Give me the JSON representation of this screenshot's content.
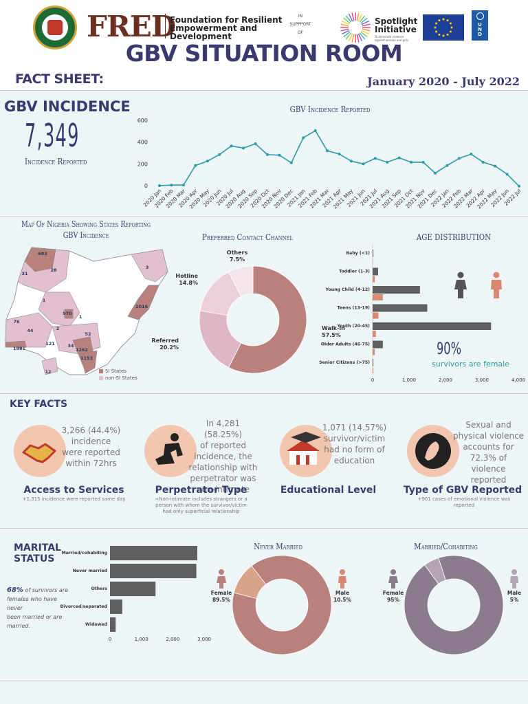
{
  "header": {
    "seal_text": "FEDERAL MINISTRY OF WOMEN AFFAIRS",
    "fred_logo": "FRED",
    "fred_full": [
      "Foundation for Resilient",
      "Empowerment and",
      "Development"
    ],
    "in_support": [
      "IN",
      "SUPPPORT",
      "OF"
    ],
    "spotlight_name": [
      "Spotlight",
      "Initiative"
    ],
    "spotlight_tagline": [
      "To eliminate violence",
      "against women and girls"
    ],
    "undp": [
      "U",
      "N",
      "D",
      "P"
    ],
    "title": "GBV SITUATION ROOM"
  },
  "factbar": {
    "label": "FACT SHEET:",
    "period": "January 2020 - July 2022"
  },
  "incidence": {
    "heading": "GBV INCIDENCE",
    "total": "7,349",
    "total_label": "Incidence Reported"
  },
  "colors": {
    "navy": "#3a3a6e",
    "teal": "#2a9aa8",
    "rose": "#b9817c",
    "pink": "#e3c0d0",
    "gray": "#5f5f5f",
    "coral": "#d98872",
    "mauve": "#8a7b8f"
  },
  "chart_data": [
    {
      "type": "line",
      "title": "GBV Incidence Reported",
      "x": [
        "2020 Jan",
        "2020 Feb",
        "2020 Mar",
        "2020 Apr",
        "2020 May",
        "2020 Jun",
        "2020 Jul",
        "2020 Aug",
        "2020 Sep",
        "2020 Oct",
        "2020 Nov",
        "2020 Dec",
        "2021 Jan",
        "2021 Feb",
        "2021 Mar",
        "2021 Apr",
        "2021 May",
        "2021 Jun",
        "2021 Jul",
        "2021 Aug",
        "2021 Sep",
        "2021 Oct",
        "2021 Nov",
        "2021 Dec",
        "2022 Jan",
        "2022 Feb",
        "2022 Mar",
        "2022 Apr",
        "2022 May",
        "2022 Jun",
        "2022 Jul"
      ],
      "values": [
        0,
        5,
        5,
        185,
        225,
        285,
        365,
        345,
        385,
        285,
        280,
        210,
        440,
        505,
        320,
        290,
        225,
        200,
        250,
        215,
        255,
        215,
        215,
        115,
        185,
        250,
        290,
        215,
        180,
        105,
        -5
      ],
      "yticks": [
        0,
        200,
        400,
        600
      ],
      "ylim": [
        0,
        600
      ],
      "grid": false
    },
    {
      "type": "pie",
      "title": "Preferred Contact Channel",
      "labels": [
        "Walk-in",
        "Referred",
        "Hotline",
        "Others"
      ],
      "percent_labels": [
        "57.5%",
        "20.2%",
        "14.8%",
        "7.5%"
      ],
      "values": [
        57.5,
        20.2,
        14.8,
        7.5
      ],
      "colors": [
        "#b9817c",
        "#dfb6c5",
        "#eccfd9",
        "#f3e3ea"
      ]
    },
    {
      "type": "bar",
      "title": "AGE DISTRIBUTION",
      "orientation": "horizontal",
      "categories": [
        "Baby (<1)",
        "Toddler (1-3)",
        "Young Child (4-12)",
        "Teens (13-19)",
        "Youth (20-45)",
        "Older Adults (46-75)",
        "Senior Citizens (>75)"
      ],
      "series": [
        {
          "name": "Female",
          "values": [
            20,
            150,
            1300,
            1500,
            3250,
            280,
            20
          ]
        },
        {
          "name": "Male",
          "values": [
            10,
            60,
            280,
            160,
            90,
            60,
            20
          ]
        }
      ],
      "xticks": [
        "0",
        "1,000",
        "2,000",
        "3,000",
        "4,000"
      ],
      "xlim": [
        0,
        4000
      ]
    },
    {
      "type": "bar",
      "title": "MARITAL STATUS",
      "orientation": "horizontal",
      "categories": [
        "Married/cohabiting",
        "Never married",
        "Others",
        "Divorced/separated",
        "Widowed"
      ],
      "values": [
        2780,
        2750,
        1450,
        390,
        180
      ],
      "xticks": [
        "0",
        "1,000",
        "2,000",
        "3,000"
      ],
      "xlim": [
        0,
        3000
      ]
    },
    {
      "type": "pie",
      "title": "Never Married",
      "labels": [
        "Female",
        "Male"
      ],
      "percent_labels": [
        "89.5%",
        "10.5%"
      ],
      "values": [
        89.5,
        10.5
      ],
      "colors": [
        "#b9817c",
        "#d8a389"
      ]
    },
    {
      "type": "pie",
      "title": "Married/Cohabiting",
      "labels": [
        "Female",
        "Male"
      ],
      "percent_labels": [
        "95%",
        "5%"
      ],
      "values": [
        95,
        5
      ],
      "colors": [
        "#8a7b8f",
        "#b4a3b5"
      ]
    }
  ],
  "map": {
    "title": [
      "Map Of Nigeria Showing States Reporting",
      "GBV Incidence"
    ],
    "labels": [
      "683",
      "28",
      "31",
      "3",
      "1",
      "1016",
      "970",
      "1",
      "76",
      "44",
      "2",
      "52",
      "121",
      "34",
      "1262",
      "1881",
      "1153",
      "12"
    ],
    "legend": [
      "SI States",
      "non-SI States"
    ]
  },
  "age_note": {
    "pct": "90%",
    "text": "survivors are female"
  },
  "keyfacts": {
    "heading": "KEY FACTS",
    "items": [
      {
        "text": [
          "3,266 (44.4%)",
          "incidence",
          "were reported",
          "within 72hrs"
        ],
        "title": "Access to Services",
        "note": [
          "+1,315 incidence were reported same day"
        ]
      },
      {
        "text": [
          "In 4,281 (58.25%)",
          "of reported",
          "incidence, the",
          "relationship with",
          "perpetrator was",
          "non-intimate"
        ],
        "title": "Perpetrator Type",
        "note": [
          "+Non-intimate includes strangers or a",
          "person with whom the survivor/victim",
          "had only superficial relationship"
        ]
      },
      {
        "text": [
          "1,071 (14.57%)",
          "survivor/victim",
          "had no form of",
          "education"
        ],
        "title": "Educational Level",
        "note": []
      },
      {
        "text": [
          "Sexual and",
          "physical violence",
          "accounts for",
          "72.3% of violence",
          "reported"
        ],
        "title": "Type of GBV Reported",
        "note": [
          "+901 cases of emotional violence was",
          "reported"
        ]
      }
    ]
  },
  "marital": {
    "heading": [
      "MARITAL",
      "STATUS"
    ],
    "note_pct": "68%",
    "note_text": [
      " of survivors are",
      "females who have never",
      "been married or are",
      "married."
    ]
  }
}
